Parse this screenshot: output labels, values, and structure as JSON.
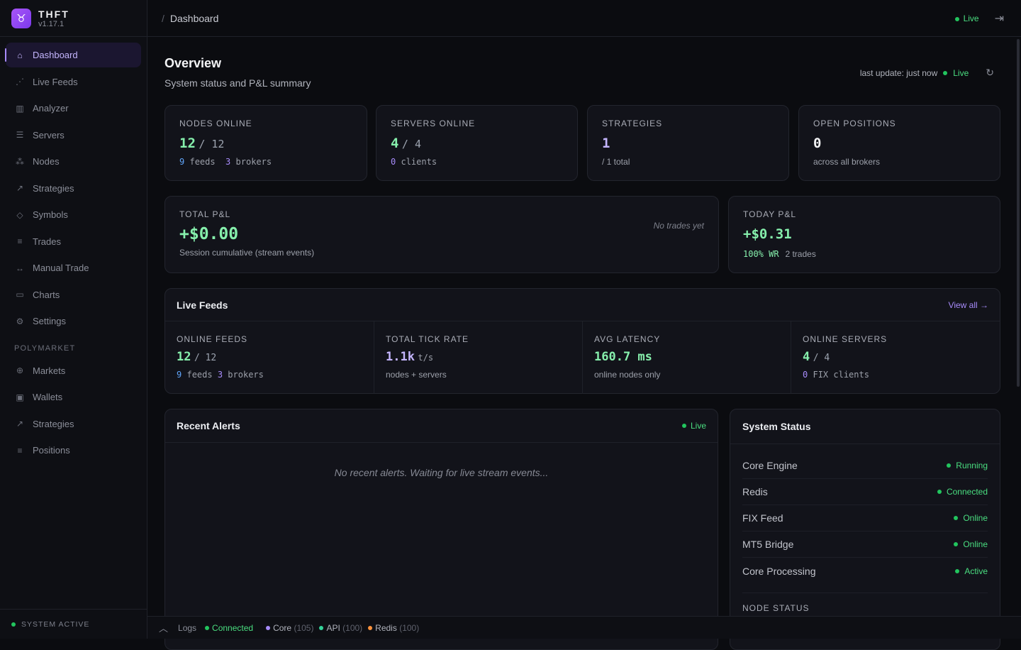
{
  "app": {
    "name": "THFT",
    "version": "v1.17.1",
    "logo_icon": "taurus-icon"
  },
  "sidebar": {
    "items": [
      {
        "label": "Dashboard",
        "icon": "⌂",
        "active": true
      },
      {
        "label": "Live Feeds",
        "icon": "⋰"
      },
      {
        "label": "Analyzer",
        "icon": "▥"
      },
      {
        "label": "Servers",
        "icon": "☰"
      },
      {
        "label": "Nodes",
        "icon": "⁂"
      },
      {
        "label": "Strategies",
        "icon": "↗"
      },
      {
        "label": "Symbols",
        "icon": "◇"
      },
      {
        "label": "Trades",
        "icon": "≡"
      },
      {
        "label": "Manual Trade",
        "icon": "↔"
      },
      {
        "label": "Charts",
        "icon": "▭"
      },
      {
        "label": "Settings",
        "icon": "⚙"
      }
    ],
    "section": "POLYMARKET",
    "poly_items": [
      {
        "label": "Markets",
        "icon": "⊕"
      },
      {
        "label": "Wallets",
        "icon": "▣"
      },
      {
        "label": "Strategies",
        "icon": "↗"
      },
      {
        "label": "Positions",
        "icon": "≡"
      }
    ],
    "footer": "SYSTEM ACTIVE"
  },
  "topbar": {
    "breadcrumb_sep": "/",
    "breadcrumb": "Dashboard",
    "live": "Live"
  },
  "overview": {
    "title": "Overview",
    "subtitle": "System status and P&L summary",
    "last_update": "last update: just now",
    "live": "Live"
  },
  "stats": {
    "nodes": {
      "label": "NODES ONLINE",
      "value": "12",
      "total": "12",
      "feeds": "9",
      "feeds_l": "feeds",
      "brokers": "3",
      "brokers_l": "brokers"
    },
    "servers": {
      "label": "SERVERS ONLINE",
      "value": "4",
      "total": "4",
      "clients": "0",
      "clients_l": "clients"
    },
    "strategies": {
      "label": "STRATEGIES",
      "value": "1",
      "sub": "/ 1 total"
    },
    "positions": {
      "label": "OPEN POSITIONS",
      "value": "0",
      "sub": "across all brokers"
    }
  },
  "pnl": {
    "total": {
      "label": "TOTAL P&L",
      "value": "+$0.00",
      "sub": "Session cumulative (stream events)",
      "note": "No trades yet"
    },
    "today": {
      "label": "TODAY P&L",
      "value": "+$0.31",
      "wr": "100% WR",
      "trades": "2 trades"
    }
  },
  "live_feeds": {
    "title": "Live Feeds",
    "view_all": "View all →",
    "online_feeds": {
      "label": "ONLINE FEEDS",
      "value": "12",
      "total": "12",
      "feeds": "9",
      "feeds_l": "feeds",
      "brokers": "3",
      "brokers_l": "brokers"
    },
    "tick_rate": {
      "label": "TOTAL TICK RATE",
      "value": "1.1k",
      "unit": "t/s",
      "sub": "nodes + servers"
    },
    "latency": {
      "label": "AVG LATENCY",
      "value": "160.7 ms",
      "sub": "online nodes only"
    },
    "servers": {
      "label": "ONLINE SERVERS",
      "value": "4",
      "total": "4",
      "fix": "0",
      "fix_l": "FIX clients"
    }
  },
  "alerts": {
    "title": "Recent Alerts",
    "live": "Live",
    "empty": "No recent alerts. Waiting for live stream events..."
  },
  "system_status": {
    "title": "System Status",
    "rows": [
      {
        "name": "Core Engine",
        "status": "Running"
      },
      {
        "name": "Redis",
        "status": "Connected"
      },
      {
        "name": "FIX Feed",
        "status": "Online"
      },
      {
        "name": "MT5 Bridge",
        "status": "Online"
      },
      {
        "name": "Core Processing",
        "status": "Active"
      }
    ],
    "node_status": "NODE STATUS"
  },
  "bottom": {
    "logs": "Logs",
    "connected": "Connected",
    "core": "Core",
    "core_n": "(105)",
    "api": "API",
    "api_n": "(100)",
    "redis": "Redis",
    "redis_n": "(100)"
  },
  "colors": {
    "accent": "#a78bfa",
    "positive": "#4ade80",
    "core": "#a78bfa",
    "api": "#34d399",
    "redis": "#fb923c"
  }
}
